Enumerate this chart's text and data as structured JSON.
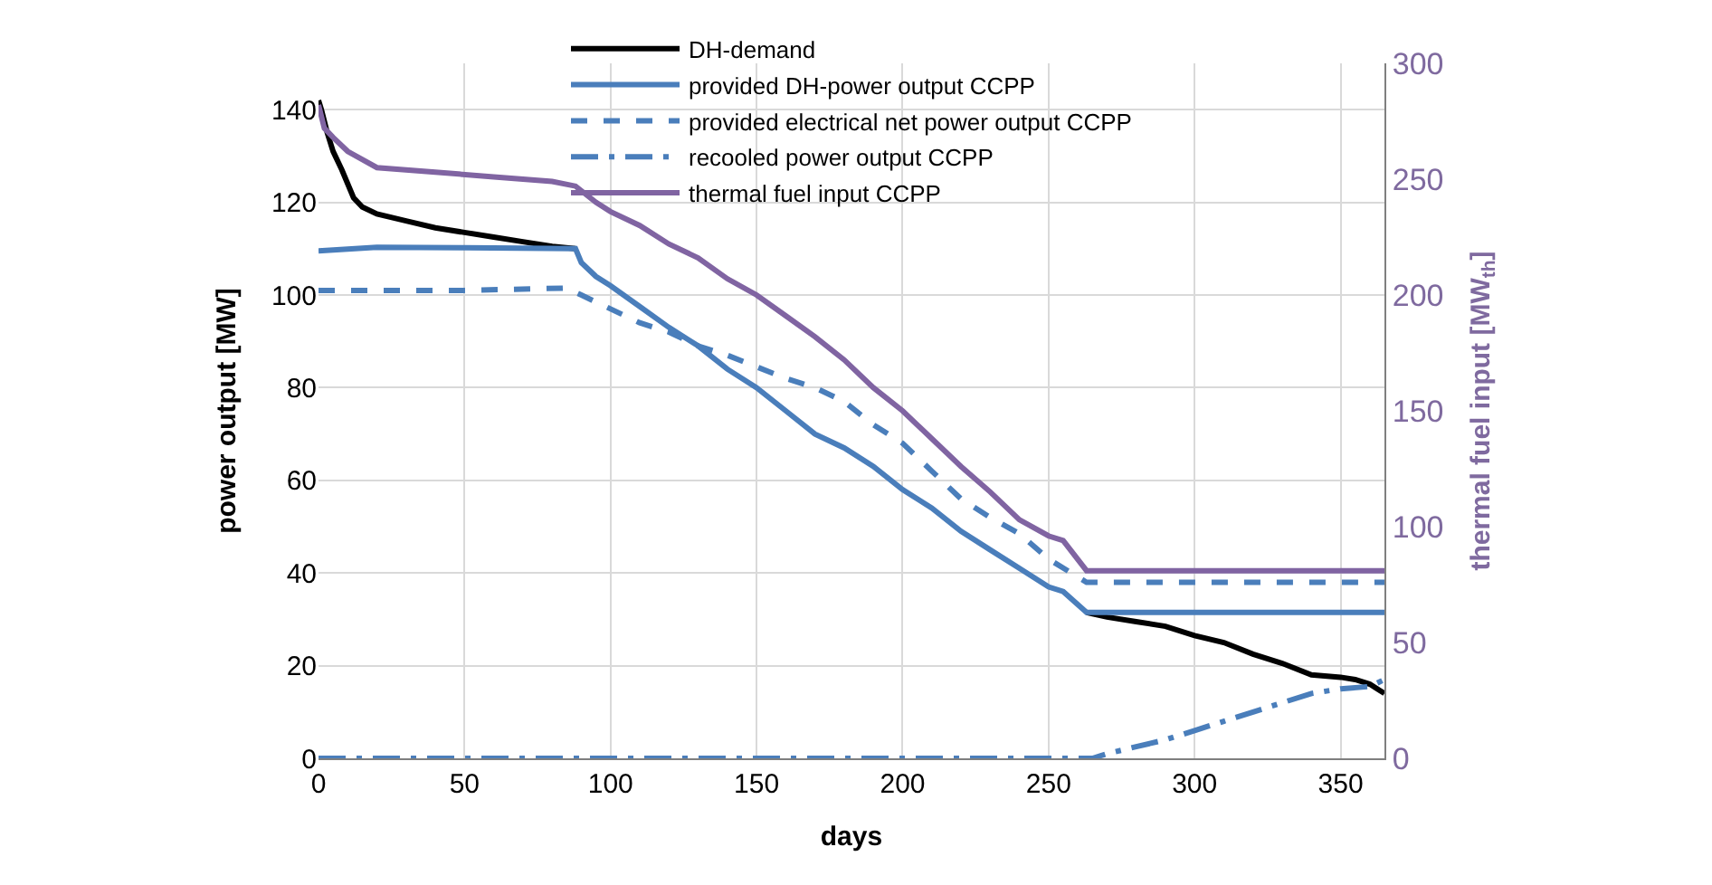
{
  "chart_data": {
    "type": "line",
    "xlabel": "days",
    "ylabel": "power output [MW]",
    "y2label": "thermal fuel input [MW$_{th}$]",
    "xlim": [
      0,
      365
    ],
    "xticks": [
      0,
      50,
      100,
      150,
      200,
      250,
      300,
      350
    ],
    "ylim": [
      0,
      150
    ],
    "yticks": [
      0,
      20,
      40,
      60,
      80,
      100,
      120,
      140
    ],
    "y2lim": [
      0,
      300
    ],
    "y2ticks": [
      0,
      50,
      100,
      150,
      200,
      250,
      300
    ],
    "grid": true,
    "legend": "top",
    "marker": "none",
    "series": [
      {
        "name": "DH-demand",
        "color": "#000000",
        "line_style": "solid",
        "x": [
          0,
          1,
          3,
          5,
          8,
          12,
          15,
          20,
          30,
          40,
          50,
          60,
          70,
          80,
          88,
          90,
          95,
          100,
          110,
          120,
          130,
          140,
          150,
          160,
          170,
          180,
          190,
          200,
          210,
          220,
          230,
          240,
          250,
          255,
          263,
          270,
          280,
          290,
          300,
          310,
          320,
          330,
          340,
          350,
          355,
          360,
          365
        ],
        "values": [
          142,
          140,
          135,
          131,
          127,
          121,
          119,
          117.5,
          116,
          114.5,
          113.5,
          112.5,
          111.5,
          110.5,
          110,
          null,
          null,
          null,
          null,
          null,
          null,
          null,
          null,
          null,
          null,
          null,
          null,
          null,
          null,
          null,
          null,
          null,
          null,
          null,
          31.5,
          30.5,
          29.5,
          28.5,
          26.5,
          25,
          22.5,
          20.5,
          18,
          17.5,
          17,
          16,
          14
        ]
      },
      {
        "name": "provided DH-power output CCPP",
        "color": "#4a7ebb",
        "line_style": "solid",
        "x": [
          0,
          20,
          50,
          88,
          90,
          95,
          100,
          110,
          120,
          130,
          140,
          150,
          160,
          170,
          180,
          190,
          200,
          210,
          220,
          230,
          240,
          250,
          255,
          263,
          365
        ],
        "values": [
          109.5,
          110.3,
          110.2,
          110,
          107,
          104,
          102,
          97.5,
          93,
          89,
          84,
          80,
          75,
          70,
          67,
          63,
          58,
          54,
          49,
          45,
          41,
          37,
          36,
          31.5,
          31.5
        ]
      },
      {
        "name": "provided electrical net power output CCPP",
        "color": "#4a7ebb",
        "line_style": "dashed",
        "x": [
          0,
          50,
          85,
          90,
          100,
          110,
          120,
          130,
          140,
          150,
          160,
          170,
          180,
          190,
          200,
          210,
          220,
          230,
          240,
          250,
          263,
          365
        ],
        "values": [
          101,
          101,
          101.5,
          100,
          97,
          94,
          92,
          89,
          87,
          84.5,
          82,
          80,
          77,
          72,
          68,
          62,
          56,
          52,
          48.5,
          43,
          38,
          38
        ]
      },
      {
        "name": "recooled power output CCPP",
        "color": "#4a7ebb",
        "line_style": "dashdot",
        "x": [
          0,
          265,
          270,
          280,
          290,
          300,
          310,
          320,
          330,
          340,
          350,
          360,
          365
        ],
        "values": [
          0,
          0,
          1,
          2.5,
          4,
          6,
          8,
          10,
          12,
          14,
          15,
          15.5,
          17
        ]
      },
      {
        "name": "thermal fuel input CCPP",
        "color": "#8064a2",
        "line_style": "solid",
        "axis": "y2",
        "x": [
          0,
          2,
          5,
          10,
          20,
          40,
          60,
          80,
          88,
          95,
          100,
          110,
          120,
          130,
          140,
          150,
          160,
          170,
          180,
          190,
          200,
          210,
          220,
          230,
          240,
          250,
          255,
          263,
          365
        ],
        "values": [
          282,
          272,
          268,
          262,
          255,
          253,
          251,
          249,
          247,
          240,
          236,
          230,
          222,
          216,
          207,
          200,
          191,
          182,
          172,
          160,
          150,
          138,
          126,
          115,
          103,
          96,
          94,
          81,
          81
        ]
      }
    ]
  }
}
